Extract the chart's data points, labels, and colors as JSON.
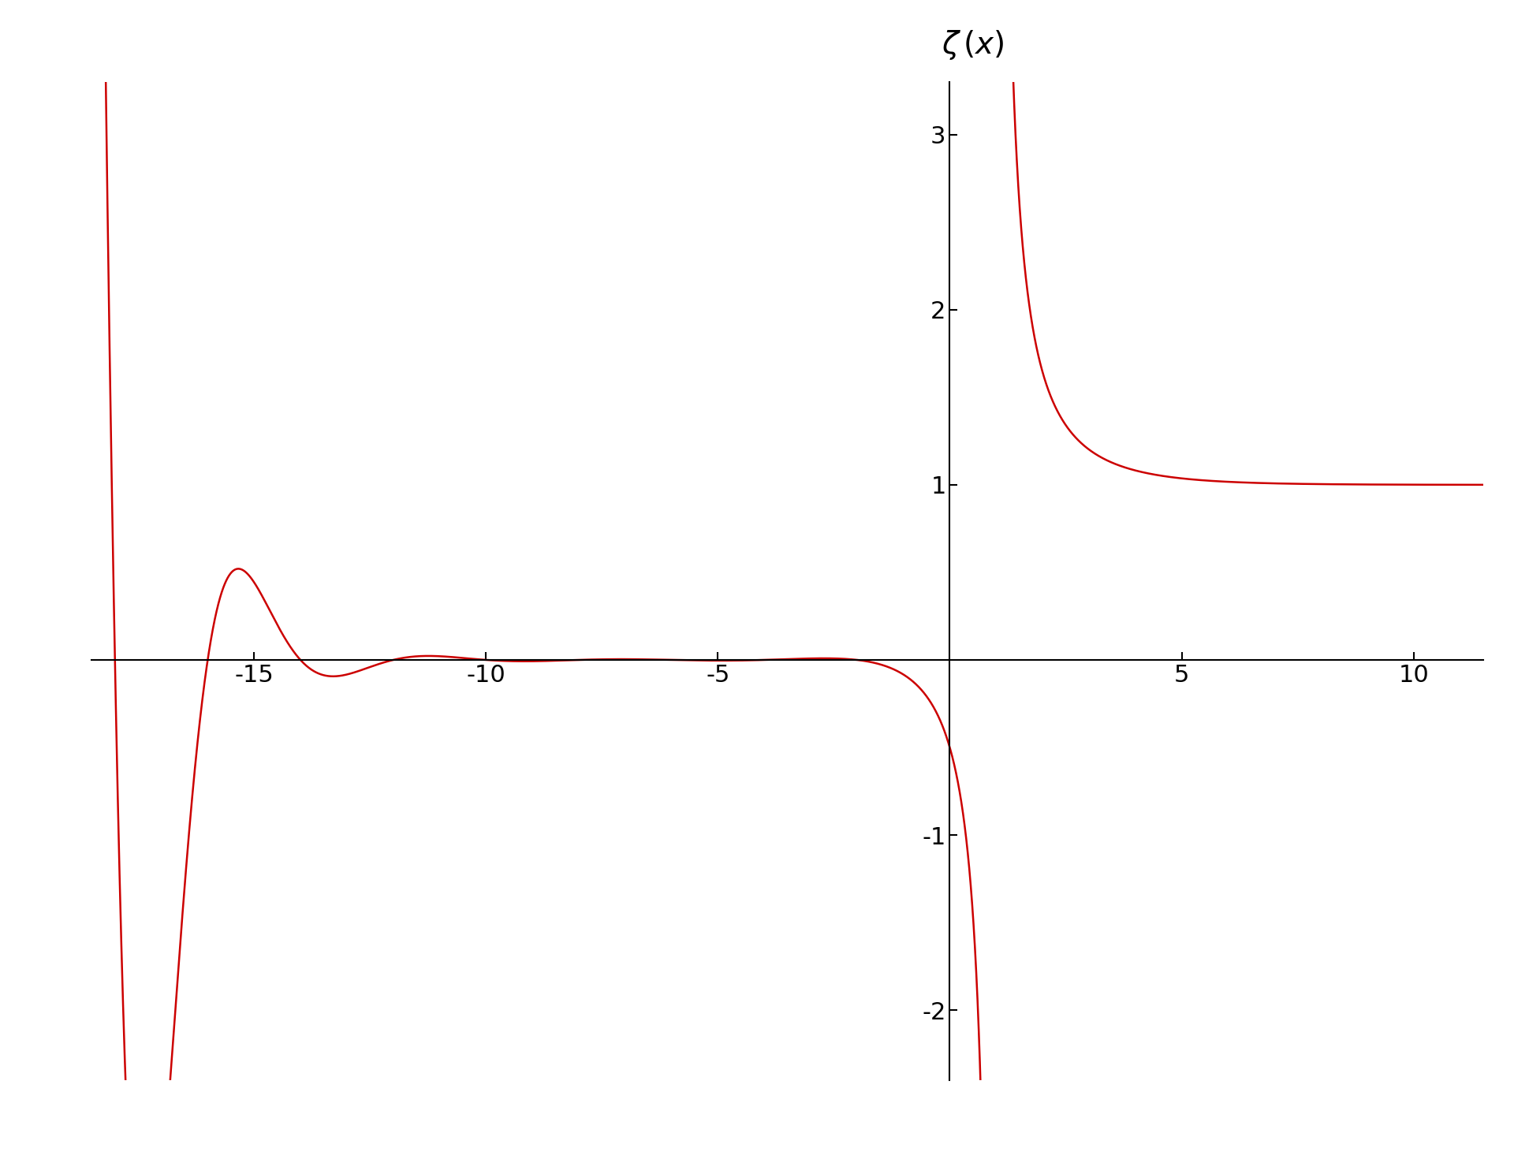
{
  "title": "$\\zeta\\,(x)$",
  "xlim": [
    -18.5,
    11.5
  ],
  "ylim": [
    -2.4,
    3.3
  ],
  "xticks": [
    -15,
    -10,
    -5,
    5,
    10
  ],
  "yticks": [
    -2,
    -1,
    1,
    2,
    3
  ],
  "line_color": "#cc0000",
  "line_width": 1.8,
  "background_color": "#ffffff",
  "pole_x": 1.0,
  "figsize": [
    19.39,
    14.89
  ],
  "dpi": 100,
  "title_fontsize": 28,
  "tick_fontsize": 22
}
